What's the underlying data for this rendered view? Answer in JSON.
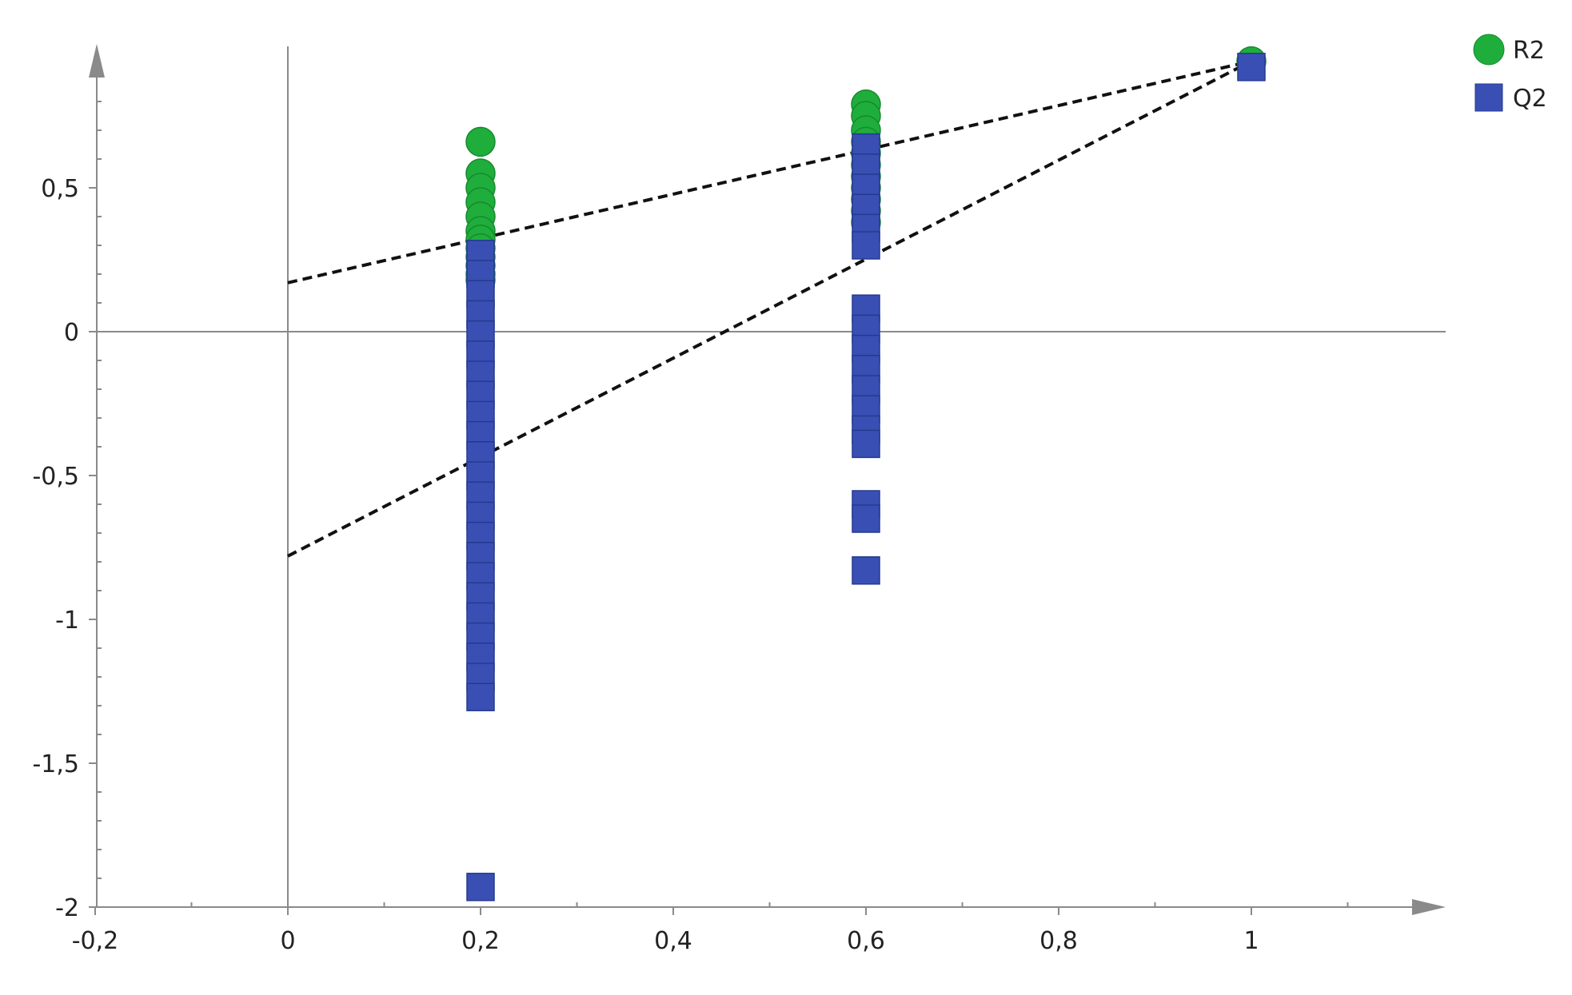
{
  "chart_data": {
    "type": "scatter",
    "title": "",
    "xlabel": "",
    "ylabel": "",
    "xlim": [
      -0.2,
      1.2
    ],
    "ylim": [
      -2,
      1
    ],
    "x_ticks": [
      -0.2,
      0,
      0.2,
      0.4,
      0.6,
      0.8,
      1
    ],
    "x_tick_labels": [
      "-0,2",
      "0",
      "0,2",
      "0,4",
      "0,6",
      "0,8",
      "1"
    ],
    "y_ticks": [
      -2,
      -1.5,
      -1,
      -0.5,
      0,
      0.5
    ],
    "y_tick_labels": [
      "-2",
      "-1,5",
      "-1",
      "-0,5",
      "0",
      "0,5"
    ],
    "grid": false,
    "legend_position": "top-right",
    "series": [
      {
        "name": "R2",
        "marker": "circle",
        "color": "#1fae3c",
        "points": [
          [
            0.2,
            0.66
          ],
          [
            0.2,
            0.55
          ],
          [
            0.2,
            0.5
          ],
          [
            0.2,
            0.45
          ],
          [
            0.2,
            0.4
          ],
          [
            0.2,
            0.35
          ],
          [
            0.2,
            0.32
          ],
          [
            0.2,
            0.29
          ],
          [
            0.2,
            0.26
          ],
          [
            0.2,
            0.23
          ],
          [
            0.2,
            0.2
          ],
          [
            0.2,
            0.18
          ],
          [
            0.6,
            0.79
          ],
          [
            0.6,
            0.75
          ],
          [
            0.6,
            0.7
          ],
          [
            0.6,
            0.66
          ],
          [
            0.6,
            0.62
          ],
          [
            0.6,
            0.58
          ],
          [
            0.6,
            0.54
          ],
          [
            0.6,
            0.5
          ],
          [
            0.6,
            0.46
          ],
          [
            0.6,
            0.42
          ],
          [
            0.6,
            0.38
          ],
          [
            1,
            0.94
          ]
        ]
      },
      {
        "name": "Q2",
        "marker": "square",
        "color": "#3a4fb3",
        "points": [
          [
            0.2,
            0.27
          ],
          [
            0.2,
            0.2
          ],
          [
            0.2,
            0.13
          ],
          [
            0.2,
            0.06
          ],
          [
            0.2,
            -0.01
          ],
          [
            0.2,
            -0.08
          ],
          [
            0.2,
            -0.15
          ],
          [
            0.2,
            -0.22
          ],
          [
            0.2,
            -0.29
          ],
          [
            0.2,
            -0.36
          ],
          [
            0.2,
            -0.43
          ],
          [
            0.2,
            -0.5
          ],
          [
            0.2,
            -0.57
          ],
          [
            0.2,
            -0.64
          ],
          [
            0.2,
            -0.71
          ],
          [
            0.2,
            -0.78
          ],
          [
            0.2,
            -0.85
          ],
          [
            0.2,
            -0.92
          ],
          [
            0.2,
            -0.99
          ],
          [
            0.2,
            -1.06
          ],
          [
            0.2,
            -1.13
          ],
          [
            0.2,
            -1.2
          ],
          [
            0.2,
            -1.27
          ],
          [
            0.2,
            -1.93
          ],
          [
            0.6,
            0.64
          ],
          [
            0.6,
            0.57
          ],
          [
            0.6,
            0.5
          ],
          [
            0.6,
            0.43
          ],
          [
            0.6,
            0.36
          ],
          [
            0.6,
            0.3
          ],
          [
            0.6,
            0.08
          ],
          [
            0.6,
            0.01
          ],
          [
            0.6,
            -0.06
          ],
          [
            0.6,
            -0.13
          ],
          [
            0.6,
            -0.2
          ],
          [
            0.6,
            -0.27
          ],
          [
            0.6,
            -0.34
          ],
          [
            0.6,
            -0.39
          ],
          [
            0.6,
            -0.6
          ],
          [
            0.6,
            -0.65
          ],
          [
            0.6,
            -0.83
          ],
          [
            1,
            0.92
          ]
        ]
      }
    ],
    "trend_lines": [
      {
        "name": "R2",
        "x": [
          0,
          1
        ],
        "y": [
          0.17,
          0.94
        ],
        "style": "dashed"
      },
      {
        "name": "Q2",
        "x": [
          0,
          1
        ],
        "y": [
          -0.78,
          0.94
        ],
        "style": "dashed"
      }
    ]
  },
  "colors": {
    "axis": "#8a8a8a",
    "trend_line": "#111111",
    "r2_stroke": "#168a2c",
    "q2_stroke": "#243a8f"
  }
}
